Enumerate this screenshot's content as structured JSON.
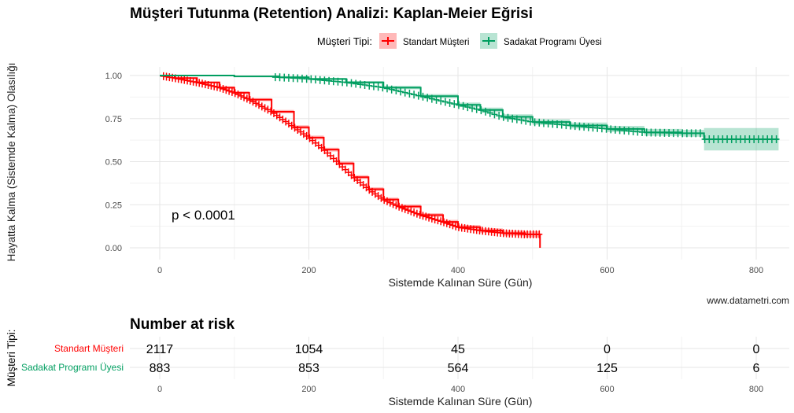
{
  "chart_data": {
    "type": "line",
    "title": "Müşteri Tutunma (Retention) Analizi: Kaplan-Meier Eğrisi",
    "xlabel": "Sistemde Kalınan Süre (Gün)",
    "ylabel": "Hayatta Kalma (Sistemde Kalma) Olasılığı",
    "xlim": [
      -40,
      840
    ],
    "ylim": [
      0,
      1
    ],
    "x_ticks": [
      0,
      200,
      400,
      600,
      800
    ],
    "y_ticks": [
      0.0,
      0.25,
      0.5,
      0.75,
      1.0
    ],
    "y_tick_labels": [
      "0.00",
      "0.25",
      "0.50",
      "0.75",
      "1.00"
    ],
    "grid": true,
    "legend": {
      "title": "Müşteri Tipi:",
      "position": "top"
    },
    "annotation": "p < 0.0001",
    "caption": "www.datametri.com",
    "series": [
      {
        "name": "Standart Müşteri",
        "color": "#ff0000",
        "x": [
          0,
          20,
          50,
          80,
          100,
          120,
          150,
          180,
          200,
          220,
          240,
          260,
          280,
          300,
          320,
          350,
          380,
          400,
          430,
          460,
          490,
          510
        ],
        "y": [
          1.0,
          0.985,
          0.96,
          0.93,
          0.9,
          0.86,
          0.79,
          0.7,
          0.64,
          0.57,
          0.49,
          0.41,
          0.34,
          0.28,
          0.24,
          0.19,
          0.15,
          0.12,
          0.1,
          0.085,
          0.078,
          0.078
        ],
        "ci_halfwidth": [
          0,
          0.003,
          0.005,
          0.007,
          0.008,
          0.009,
          0.01,
          0.011,
          0.011,
          0.011,
          0.011,
          0.011,
          0.011,
          0.011,
          0.011,
          0.011,
          0.012,
          0.012,
          0.013,
          0.015,
          0.018,
          0.018
        ],
        "end_drop_to": 0.0
      },
      {
        "name": "Sadakat Programı Üyesi",
        "color": "#009e60",
        "x": [
          0,
          100,
          160,
          200,
          250,
          300,
          350,
          400,
          430,
          460,
          500,
          550,
          600,
          650,
          700,
          730,
          730,
          830
        ],
        "y": [
          1.0,
          0.995,
          0.99,
          0.98,
          0.96,
          0.93,
          0.88,
          0.83,
          0.8,
          0.76,
          0.73,
          0.71,
          0.69,
          0.67,
          0.665,
          0.665,
          0.63,
          0.63
        ],
        "ci_halfwidth": [
          0,
          0.003,
          0.005,
          0.006,
          0.008,
          0.01,
          0.012,
          0.013,
          0.014,
          0.015,
          0.016,
          0.017,
          0.018,
          0.02,
          0.02,
          0.02,
          0.065,
          0.065
        ]
      }
    ]
  },
  "risk_table": {
    "title": "Number at risk",
    "ylabel": "Müşteri Tipi:",
    "xlabel": "Sistemde Kalınan Süre (Gün)",
    "times": [
      0,
      200,
      400,
      600,
      800
    ],
    "rows": [
      {
        "label": "Standart Müşteri",
        "color": "#ff0000",
        "values": [
          "2117",
          "1054",
          "45",
          "0",
          "0"
        ]
      },
      {
        "label": "Sadakat Programı Üyesi",
        "color": "#009e60",
        "values": [
          "883",
          "853",
          "564",
          "125",
          "6"
        ]
      }
    ]
  }
}
